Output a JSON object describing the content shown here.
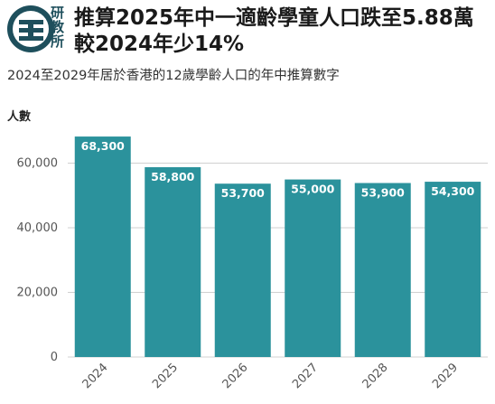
{
  "logo": {
    "chars": [
      "研",
      "教",
      "所"
    ]
  },
  "title": "推算2025年中一適齡學童人口跌至5.88萬　較2024年少14%",
  "subtitle": "2024至2029年居於香港的12歲學齡人口的年中推算數字",
  "colors": {
    "bar": "#2b929c",
    "logo": "#1e4f5c"
  },
  "chart_data": {
    "type": "bar",
    "title": "推算2025年中一適齡學童人口跌至5.88萬　較2024年少14%",
    "subtitle": "2024至2029年居於香港的12歲學齡人口的年中推算數字",
    "xlabel": "",
    "ylabel": "人數",
    "categories": [
      "2024",
      "2025",
      "2026",
      "2027",
      "2028",
      "2029"
    ],
    "values": [
      68300,
      58800,
      53700,
      55000,
      53900,
      54300
    ],
    "data_labels": [
      "68,300",
      "58,800",
      "53,700",
      "55,000",
      "53,900",
      "54,300"
    ],
    "ylim": [
      0,
      70000
    ],
    "yticks": [
      0,
      20000,
      40000,
      60000
    ],
    "ytick_labels": [
      "0",
      "20,000",
      "40,000",
      "60,000"
    ],
    "grid": true,
    "legend": "none"
  }
}
